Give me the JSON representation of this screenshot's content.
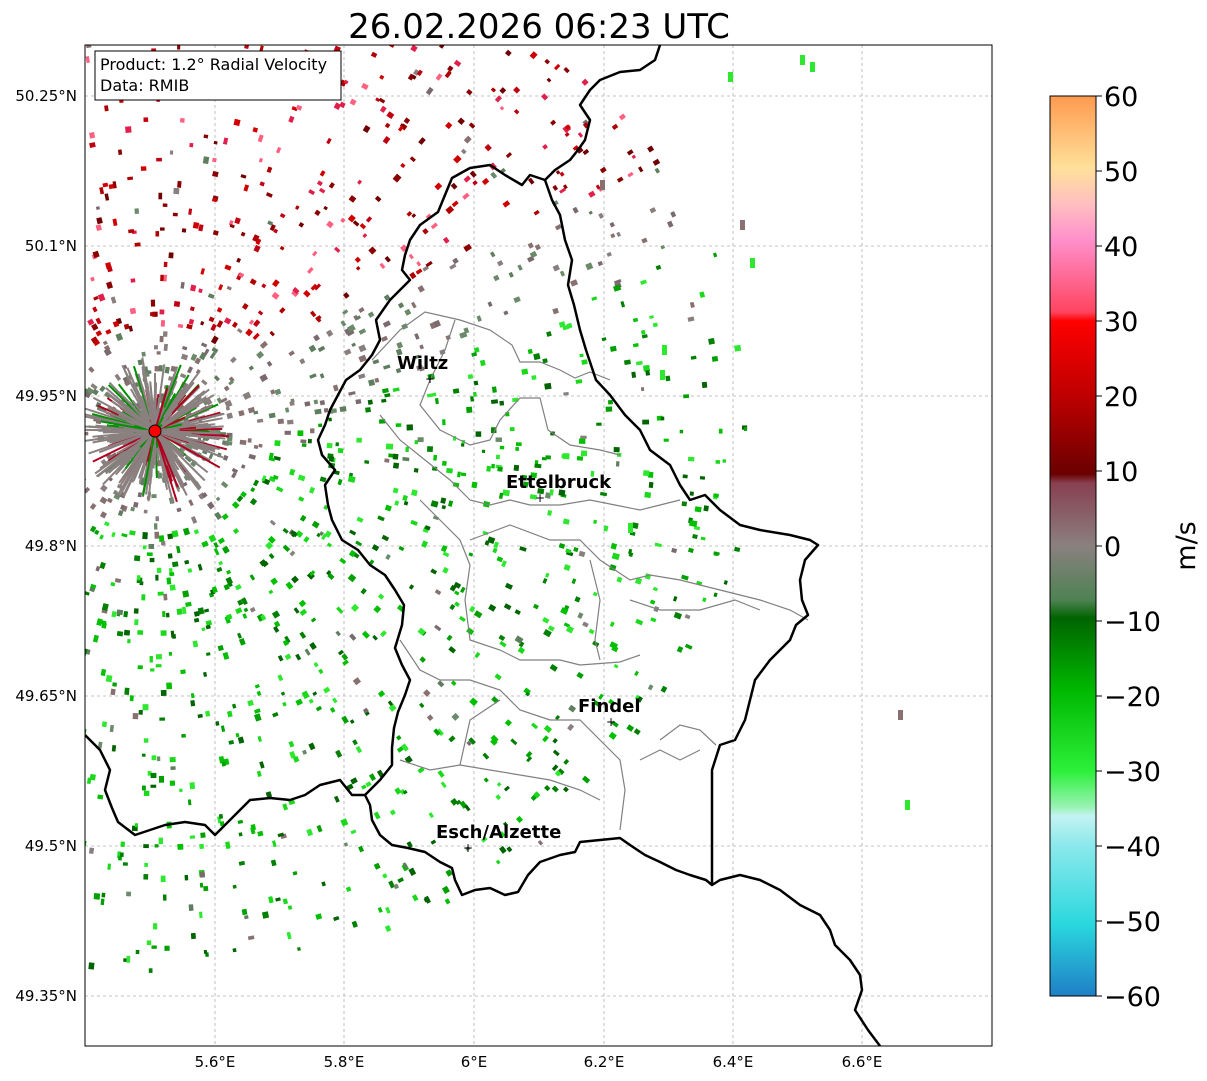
{
  "title": "26.02.2026 06:23 UTC",
  "info_box": {
    "product": "Product: 1.2° Radial Velocity",
    "data_source": "Data: RMIB"
  },
  "axes": {
    "lon_ticks": [
      "5.6°E",
      "5.8°E",
      "6°E",
      "6.2°E",
      "6.4°E",
      "6.6°E"
    ],
    "lat_ticks": [
      "50.25°N",
      "50.1°N",
      "49.95°N",
      "49.8°N",
      "49.65°N",
      "49.5°N",
      "49.35°N"
    ]
  },
  "cities": [
    {
      "name": "Wiltz"
    },
    {
      "name": "Ettelbruck"
    },
    {
      "name": "Findel"
    },
    {
      "name": "Esch/Alzette"
    }
  ],
  "colorbar": {
    "unit_label": "m/s",
    "ticks": [
      "60",
      "50",
      "40",
      "30",
      "20",
      "10",
      "0",
      "−10",
      "−20",
      "−30",
      "−40",
      "−50",
      "−60"
    ],
    "range": [
      -60,
      60
    ]
  },
  "colors": {
    "radar_site": "#ff0000",
    "border": "#000000",
    "canton_lines": "#808080"
  }
}
